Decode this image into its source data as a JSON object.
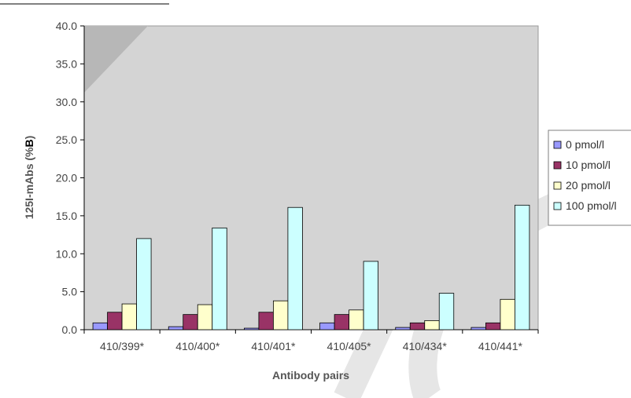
{
  "chart_data": {
    "type": "bar",
    "title": "",
    "xlabel": "Antibody pairs",
    "ylabel_main": "125I-mAbs (%",
    "ylabel_bold": "B",
    "ylabel_close": ")",
    "ylim": [
      0,
      40
    ],
    "yticks": [
      0,
      5,
      10,
      15,
      20,
      25,
      30,
      35,
      40
    ],
    "yticks_labels": [
      "0.0",
      "5.0",
      "10.0",
      "15.0",
      "20.0",
      "25.0",
      "30.0",
      "35.0",
      "40.0"
    ],
    "grid": false,
    "legend_position": "right",
    "categories": [
      "410/399*",
      "410/400*",
      "410/401*",
      "410/405*",
      "410/434*",
      "410/441*"
    ],
    "series": [
      {
        "name": "0 pmol/l",
        "color": "#9999ff",
        "values": [
          0.9,
          0.4,
          0.2,
          0.9,
          0.3,
          0.3
        ]
      },
      {
        "name": "10 pmol/l",
        "color": "#993366",
        "values": [
          2.3,
          2.0,
          2.3,
          2.0,
          0.9,
          0.9
        ]
      },
      {
        "name": "20 pmol/l",
        "color": "#ffffcc",
        "values": [
          3.4,
          3.3,
          3.8,
          2.6,
          1.2,
          4.0
        ]
      },
      {
        "name": "100 pmol/l",
        "color": "#ccffff",
        "values": [
          12.0,
          13.4,
          16.1,
          9.0,
          4.8,
          16.4
        ]
      }
    ]
  }
}
